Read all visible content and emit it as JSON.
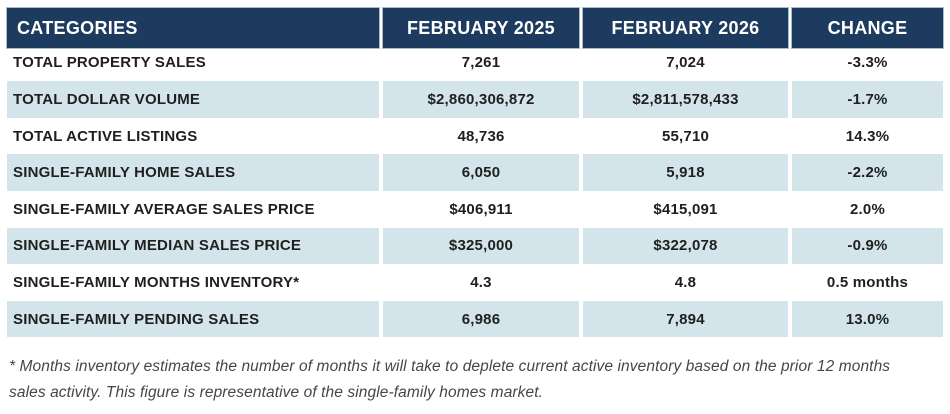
{
  "chart_data": {
    "type": "table",
    "columns": [
      "CATEGORIES",
      "FEBRUARY 2025",
      "FEBRUARY 2026",
      "CHANGE"
    ],
    "rows": [
      {
        "category": "TOTAL PROPERTY SALES",
        "feb2025": "7,261",
        "feb2026": "7,024",
        "change": "-3.3%"
      },
      {
        "category": "TOTAL DOLLAR VOLUME",
        "feb2025": "$2,860,306,872",
        "feb2026": "$2,811,578,433",
        "change": "-1.7%"
      },
      {
        "category": "TOTAL ACTIVE LISTINGS",
        "feb2025": "48,736",
        "feb2026": "55,710",
        "change": "14.3%"
      },
      {
        "category": "SINGLE-FAMILY HOME SALES",
        "feb2025": "6,050",
        "feb2026": "5,918",
        "change": "-2.2%"
      },
      {
        "category": "SINGLE-FAMILY AVERAGE SALES PRICE",
        "feb2025": "$406,911",
        "feb2026": "$415,091",
        "change": "2.0%"
      },
      {
        "category": "SINGLE-FAMILY MEDIAN SALES PRICE",
        "feb2025": "$325,000",
        "feb2026": "$322,078",
        "change": "-0.9%"
      },
      {
        "category": "SINGLE-FAMILY MONTHS INVENTORY*",
        "feb2025": "4.3",
        "feb2026": "4.8",
        "change": "0.5 months"
      },
      {
        "category": "SINGLE-FAMILY PENDING SALES",
        "feb2025": "6,986",
        "feb2026": "7,894",
        "change": "13.0%"
      }
    ]
  },
  "footnote": "* Months inventory estimates the number of months it will take to deplete current active inventory based on the prior 12 months sales activity. This figure is representative of the single-family homes market.",
  "colors": {
    "header_bg": "#1d3b5e",
    "header_text": "#ffffff",
    "header_border": "#a9bcc9",
    "row_alt_bg": "#d3e5eb",
    "body_text": "#1f1f1f",
    "footnote_text": "#464646"
  }
}
